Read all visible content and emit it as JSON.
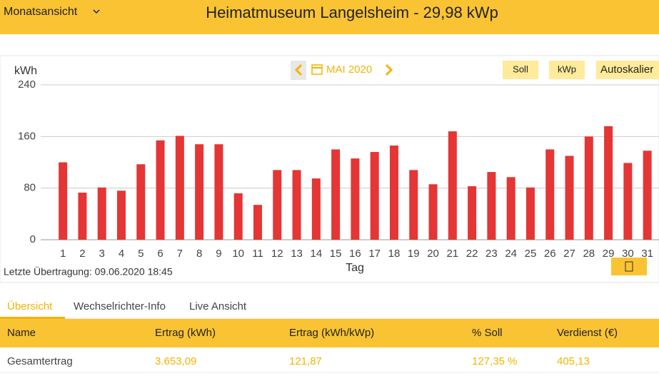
{
  "header": {
    "view_menu": "Monatsansicht",
    "title": "Heimatmuseum Langelsheim - 29,98 kWp"
  },
  "chart_data": {
    "type": "bar",
    "y_label": "kWh",
    "x_label": "Tag",
    "period": "MAI 2020",
    "buttons": [
      "Soll",
      "kWp",
      "Autoskalier"
    ],
    "footer": "Letzte Übertragung: 09.06.2020 18:45",
    "categories": [
      "1",
      "2",
      "3",
      "4",
      "5",
      "6",
      "7",
      "8",
      "9",
      "10",
      "11",
      "12",
      "13",
      "14",
      "15",
      "16",
      "17",
      "18",
      "19",
      "20",
      "21",
      "22",
      "23",
      "24",
      "25",
      "26",
      "27",
      "28",
      "29",
      "30",
      "31"
    ],
    "values": [
      120,
      73,
      81,
      76,
      117,
      154,
      161,
      148,
      148,
      72,
      54,
      108,
      108,
      95,
      140,
      126,
      136,
      146,
      108,
      86,
      168,
      83,
      105,
      97,
      81,
      140,
      130,
      160,
      176,
      119,
      138
    ],
    "color": "#e53535",
    "ylim": [
      0,
      240
    ],
    "yticks": [
      0,
      80,
      160,
      240
    ],
    "grid": true
  },
  "tabs": [
    "Übersicht",
    "Wechselrichter-Info",
    "Live Ansicht"
  ],
  "table": {
    "columns": [
      "Name",
      "Ertrag (kWh)",
      "Ertrag (kWh/kWp)",
      "% Soll",
      "Verdienst (€)"
    ],
    "rows": [
      [
        "Gesamtertrag",
        "3.653,09",
        "121,87",
        "127,35 %",
        "405,13"
      ]
    ]
  }
}
